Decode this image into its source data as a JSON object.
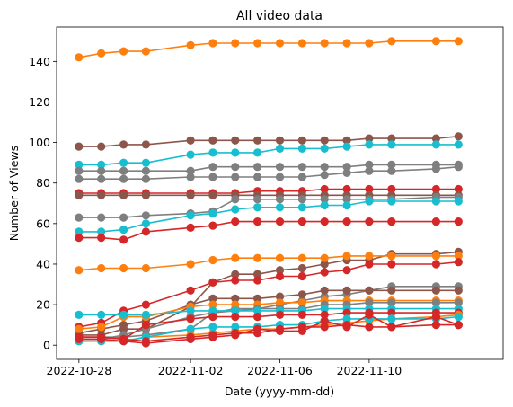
{
  "chart_data": {
    "type": "line",
    "title": "All video data",
    "xlabel": "Date (yyyy-mm-dd)",
    "ylabel": "Number of Views",
    "x_ticks": [
      "2022-10-28",
      "2022-11-02",
      "2022-11-06",
      "2022-11-10"
    ],
    "y_ticks": [
      0,
      20,
      40,
      60,
      80,
      100,
      120,
      140
    ],
    "ylim": [
      -7,
      157
    ],
    "xlim": [
      "2022-10-27",
      "2022-11-16"
    ],
    "grid": false,
    "marker": "circle",
    "x": [
      "2022-10-28",
      "2022-10-29",
      "2022-10-30",
      "2022-10-31",
      "2022-11-02",
      "2022-11-03",
      "2022-11-04",
      "2022-11-05",
      "2022-11-06",
      "2022-11-07",
      "2022-11-08",
      "2022-11-09",
      "2022-11-10",
      "2022-11-11",
      "2022-11-13",
      "2022-11-14"
    ],
    "series": [
      {
        "color": "#ff7f0e",
        "values": [
          142,
          144,
          145,
          145,
          148,
          149,
          149,
          149,
          149,
          149,
          149,
          149,
          149,
          150,
          150,
          150
        ]
      },
      {
        "color": "#8c564b",
        "values": [
          98,
          98,
          99,
          99,
          101,
          101,
          101,
          101,
          101,
          101,
          101,
          101,
          102,
          102,
          102,
          103
        ]
      },
      {
        "color": "#17becf",
        "values": [
          89,
          89,
          90,
          90,
          94,
          95,
          95,
          95,
          97,
          97,
          97,
          98,
          99,
          99,
          99,
          99
        ]
      },
      {
        "color": "#7f7f7f",
        "values": [
          86,
          86,
          86,
          86,
          86,
          88,
          88,
          88,
          88,
          88,
          88,
          88,
          89,
          89,
          89,
          89
        ]
      },
      {
        "color": "#7f7f7f",
        "values": [
          82,
          82,
          82,
          82,
          83,
          83,
          83,
          83,
          83,
          83,
          84,
          85,
          86,
          86,
          87,
          88
        ]
      },
      {
        "color": "#d62728",
        "values": [
          75,
          75,
          75,
          75,
          75,
          75,
          75,
          76,
          76,
          76,
          77,
          77,
          77,
          77,
          77,
          77
        ]
      },
      {
        "color": "#8c564b",
        "values": [
          74,
          74,
          74,
          74,
          74,
          74,
          74,
          74,
          74,
          74,
          74,
          74,
          74,
          74,
          74,
          74
        ]
      },
      {
        "color": "#7f7f7f",
        "values": [
          63,
          63,
          63,
          64,
          65,
          66,
          72,
          72,
          72,
          72,
          72,
          72,
          72,
          72,
          73,
          73
        ]
      },
      {
        "color": "#17becf",
        "values": [
          56,
          56,
          57,
          60,
          64,
          65,
          67,
          68,
          68,
          68,
          69,
          69,
          71,
          71,
          71,
          71
        ]
      },
      {
        "color": "#d62728",
        "values": [
          53,
          53,
          52,
          56,
          58,
          59,
          61,
          61,
          61,
          61,
          61,
          61,
          61,
          61,
          61,
          61
        ]
      },
      {
        "color": "#8c564b",
        "values": [
          5,
          5,
          8,
          8,
          19,
          31,
          35,
          35,
          37,
          38,
          40,
          42,
          42,
          45,
          45,
          46
        ]
      },
      {
        "color": "#ff7f0e",
        "values": [
          37,
          38,
          38,
          38,
          40,
          42,
          43,
          43,
          43,
          43,
          43,
          44,
          44,
          44,
          44,
          44
        ]
      },
      {
        "color": "#d62728",
        "values": [
          9,
          11,
          17,
          20,
          27,
          31,
          32,
          32,
          34,
          34,
          36,
          37,
          40,
          40,
          40,
          41
        ]
      },
      {
        "color": "#7f7f7f",
        "values": [
          4,
          4,
          4,
          5,
          8,
          16,
          18,
          18,
          20,
          22,
          24,
          25,
          27,
          29,
          29,
          29
        ]
      },
      {
        "color": "#8c564b",
        "values": [
          6,
          8,
          10,
          12,
          20,
          23,
          23,
          23,
          24,
          25,
          27,
          27,
          27,
          27,
          27,
          27
        ]
      },
      {
        "color": "#ff7f0e",
        "values": [
          8,
          9,
          14,
          14,
          19,
          20,
          20,
          20,
          21,
          21,
          22,
          22,
          22,
          22,
          22,
          22
        ]
      },
      {
        "color": "#7f7f7f",
        "values": [
          3,
          3,
          5,
          8,
          14,
          16,
          17,
          18,
          18,
          18,
          20,
          20,
          21,
          21,
          21,
          21
        ]
      },
      {
        "color": "#17becf",
        "values": [
          15,
          15,
          15,
          15,
          17,
          17,
          17,
          17,
          17,
          17,
          18,
          18,
          18,
          18,
          18,
          18
        ]
      },
      {
        "color": "#d62728",
        "values": [
          4,
          4,
          3,
          10,
          13,
          14,
          14,
          14,
          15,
          15,
          15,
          16,
          16,
          16,
          16,
          16
        ]
      },
      {
        "color": "#ff7f0e",
        "values": [
          2,
          2,
          2,
          4,
          5,
          6,
          7,
          8,
          8,
          9,
          10,
          11,
          12,
          13,
          14,
          15
        ]
      },
      {
        "color": "#17becf",
        "values": [
          2,
          2,
          2,
          4,
          8,
          9,
          9,
          9,
          10,
          10,
          12,
          13,
          13,
          13,
          13,
          14
        ]
      },
      {
        "color": "#d62728",
        "values": [
          3,
          3,
          2,
          1,
          3,
          4,
          5,
          8,
          7,
          7,
          12,
          9,
          15,
          9,
          14,
          10
        ]
      },
      {
        "color": "#d62728",
        "values": [
          4,
          4,
          3,
          2,
          4,
          5,
          6,
          6,
          8,
          9,
          9,
          10,
          9,
          9,
          10,
          10
        ]
      }
    ]
  }
}
